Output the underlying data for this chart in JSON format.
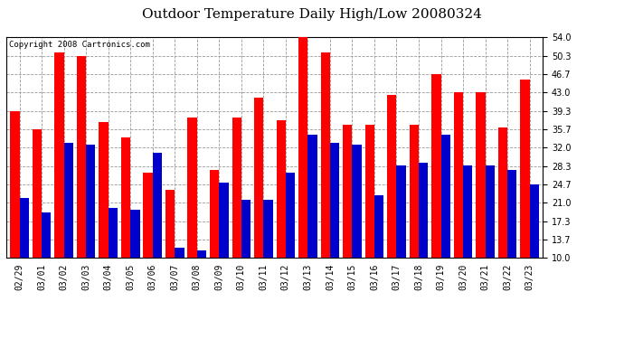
{
  "title": "Outdoor Temperature Daily High/Low 20080324",
  "copyright": "Copyright 2008 Cartronics.com",
  "dates": [
    "02/29",
    "03/01",
    "03/02",
    "03/03",
    "03/04",
    "03/05",
    "03/06",
    "03/07",
    "03/08",
    "03/09",
    "03/10",
    "03/11",
    "03/12",
    "03/13",
    "03/14",
    "03/15",
    "03/16",
    "03/17",
    "03/18",
    "03/19",
    "03/20",
    "03/21",
    "03/22",
    "03/23"
  ],
  "highs": [
    39.3,
    35.7,
    51.0,
    50.3,
    37.0,
    34.0,
    27.0,
    23.5,
    38.0,
    27.5,
    38.0,
    42.0,
    37.5,
    54.0,
    51.0,
    36.5,
    36.5,
    42.5,
    36.5,
    46.7,
    43.0,
    43.0,
    36.0,
    45.5
  ],
  "lows": [
    22.0,
    19.0,
    33.0,
    32.5,
    20.0,
    19.5,
    31.0,
    12.0,
    11.5,
    25.0,
    21.5,
    21.5,
    27.0,
    34.5,
    33.0,
    32.5,
    22.5,
    28.5,
    29.0,
    34.5,
    28.5,
    28.5,
    27.5,
    24.7
  ],
  "high_color": "#ff0000",
  "low_color": "#0000cc",
  "bg_color": "#ffffff",
  "plot_bg_color": "#ffffff",
  "grid_color": "#999999",
  "yticks": [
    10.0,
    13.7,
    17.3,
    21.0,
    24.7,
    28.3,
    32.0,
    35.7,
    39.3,
    43.0,
    46.7,
    50.3,
    54.0
  ],
  "ymin": 10.0,
  "ymax": 54.0,
  "bar_width": 0.42,
  "title_fontsize": 11,
  "tick_fontsize": 7,
  "copyright_fontsize": 6.5
}
